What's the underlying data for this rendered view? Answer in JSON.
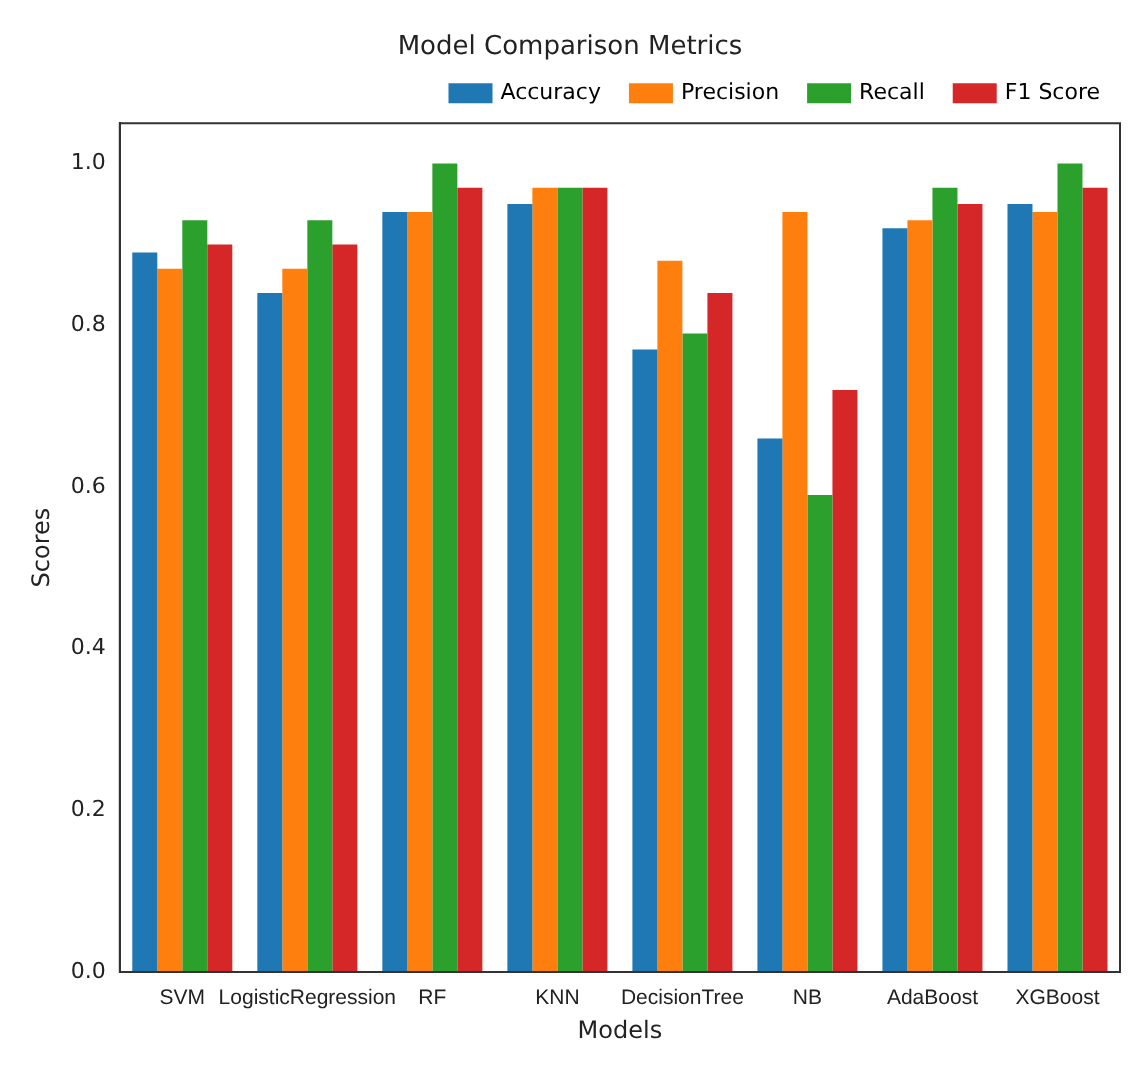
{
  "chart_data": {
    "type": "bar",
    "title": "Model Comparison Metrics",
    "xlabel": "Models",
    "ylabel": "Scores",
    "categories": [
      "SVM",
      "LogisticRegression",
      "RF",
      "KNN",
      "DecisionTree",
      "NB",
      "AdaBoost",
      "XGBoost"
    ],
    "series": [
      {
        "name": "Accuracy",
        "color": "#1f77b4",
        "values": [
          0.89,
          0.84,
          0.94,
          0.95,
          0.77,
          0.66,
          0.92,
          0.95
        ]
      },
      {
        "name": "Precision",
        "color": "#ff7f0e",
        "values": [
          0.87,
          0.87,
          0.94,
          0.97,
          0.88,
          0.94,
          0.93,
          0.94
        ]
      },
      {
        "name": "Recall",
        "color": "#2ca02c",
        "values": [
          0.93,
          0.93,
          1.0,
          0.97,
          0.79,
          0.59,
          0.97,
          1.0
        ]
      },
      {
        "name": "F1 Score",
        "color": "#d62728",
        "values": [
          0.9,
          0.9,
          0.97,
          0.97,
          0.84,
          0.72,
          0.95,
          0.97
        ]
      }
    ],
    "ylim": [
      0,
      1.05
    ],
    "yticks": [
      {
        "value": 0,
        "label": "0.0"
      },
      {
        "value": 0.2,
        "label": "0.2"
      },
      {
        "value": 0.4,
        "label": "0.4"
      },
      {
        "value": 0.6,
        "label": "0.6"
      },
      {
        "value": 0.8,
        "label": "0.8"
      },
      {
        "value": 1,
        "label": "1.0"
      }
    ],
    "grid": false,
    "legend": "top right"
  }
}
